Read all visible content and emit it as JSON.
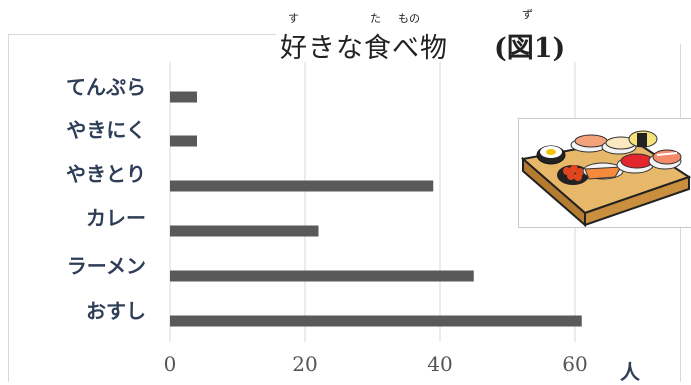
{
  "title": {
    "text": "好きな食べ物",
    "figure_label": "(図1)",
    "ruby": [
      "す",
      "た",
      "もの",
      "ず"
    ]
  },
  "unit_label": "人",
  "illustration": "sushi-platter-illustration",
  "colors": {
    "bar": "#595959",
    "grid": "#d9d9d9",
    "label": "#2e3e57"
  },
  "chart_data": {
    "type": "bar",
    "orientation": "horizontal",
    "categories": [
      "てんぷら",
      "やきにく",
      "やきとり",
      "カレー",
      "ラーメン",
      "おすし"
    ],
    "values": [
      4,
      4,
      39,
      22,
      45,
      61
    ],
    "xticks": [
      "0",
      "20",
      "40",
      "60"
    ],
    "xlim": [
      0,
      65
    ],
    "grid": "vertical",
    "xlabel": "人"
  }
}
